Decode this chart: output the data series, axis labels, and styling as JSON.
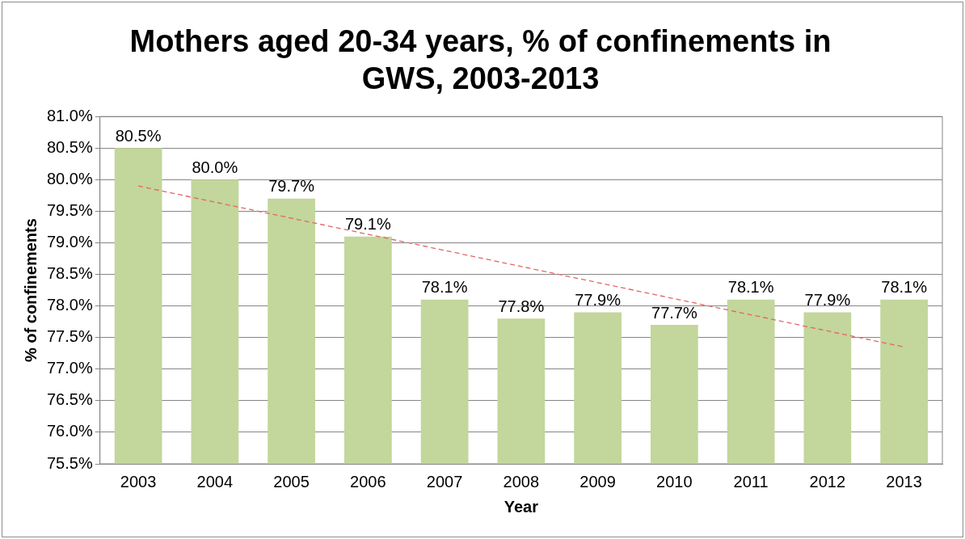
{
  "chart_data": {
    "type": "bar",
    "title": "Mothers aged 20-34 years, % of confinements in GWS, 2003-2013",
    "xlabel": "Year",
    "ylabel": "% of confinements",
    "categories": [
      "2003",
      "2004",
      "2005",
      "2006",
      "2007",
      "2008",
      "2009",
      "2010",
      "2011",
      "2012",
      "2013"
    ],
    "series": [
      {
        "color": "#c3d69b",
        "values": [
          80.5,
          80.0,
          79.7,
          79.1,
          78.1,
          77.8,
          77.9,
          77.7,
          78.1,
          77.9,
          78.1
        ],
        "value_labels": [
          "80.5%",
          "80.0%",
          "79.7%",
          "79.1%",
          "78.1%",
          "77.8%",
          "77.9%",
          "77.7%",
          "78.1%",
          "77.9%",
          "78.1%"
        ]
      },
      {
        "type": "line",
        "color": "#e06666",
        "line_style": "dashed",
        "values": [
          79.9,
          null,
          null,
          null,
          null,
          null,
          null,
          null,
          null,
          null,
          77.35
        ]
      }
    ],
    "ylim": [
      75.5,
      81.0
    ],
    "yticks": [
      {
        "value": 75.5,
        "label": "75.5%"
      },
      {
        "value": 76.0,
        "label": "76.0%"
      },
      {
        "value": 76.5,
        "label": "76.5%"
      },
      {
        "value": 77.0,
        "label": "77.0%"
      },
      {
        "value": 77.5,
        "label": "77.5%"
      },
      {
        "value": 78.0,
        "label": "78.0%"
      },
      {
        "value": 78.5,
        "label": "78.5%"
      },
      {
        "value": 79.0,
        "label": "79.0%"
      },
      {
        "value": 79.5,
        "label": "79.5%"
      },
      {
        "value": 80.0,
        "label": "80.0%"
      },
      {
        "value": 80.5,
        "label": "80.5%"
      },
      {
        "value": 81.0,
        "label": "81.0%"
      }
    ],
    "grid": "y",
    "legend": false
  }
}
